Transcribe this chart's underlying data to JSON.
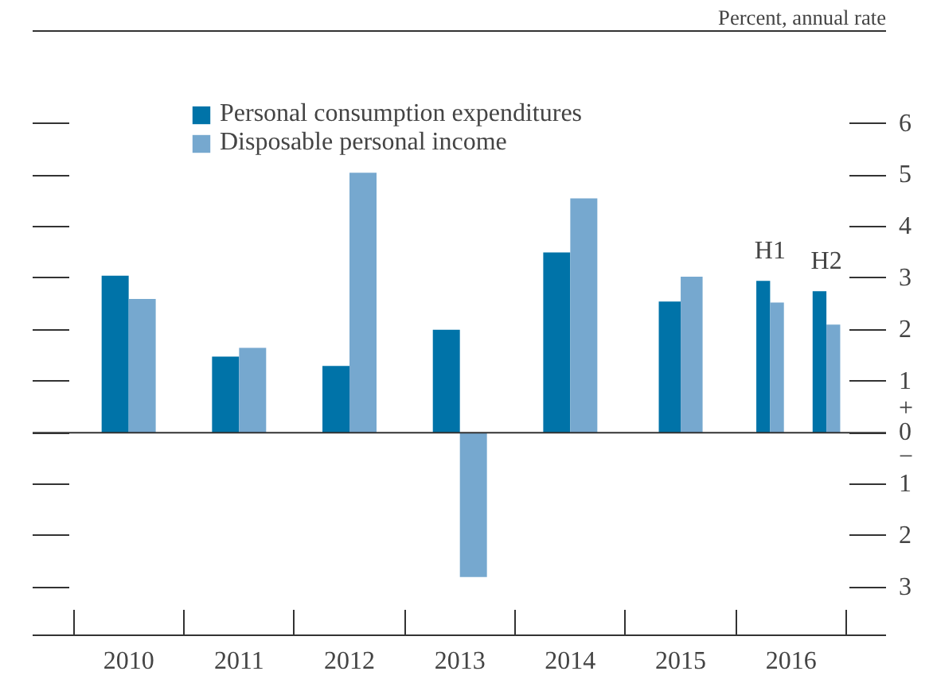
{
  "chart_data": {
    "type": "bar",
    "ylabel": "Percent, annual rate",
    "x": [
      2010,
      2011,
      2012,
      2013,
      2014,
      2015,
      2015.81,
      2016.32
    ],
    "series": [
      {
        "name": "Personal consumption expenditures",
        "color": "#0073a8",
        "values": [
          3.05,
          1.48,
          1.3,
          2.0,
          3.5,
          2.55,
          2.95,
          2.75
        ]
      },
      {
        "name": "Disposable personal income",
        "color": "#76a8cf",
        "values": [
          2.6,
          1.65,
          5.05,
          -2.8,
          4.55,
          3.03,
          2.53,
          2.1
        ]
      }
    ],
    "annotations": [
      "H1",
      "H2"
    ],
    "xlim": [
      2009.13,
      2016.86
    ],
    "xticks": [
      {
        "value": 2009.5,
        "label": null
      },
      {
        "value": 2010,
        "label": "2010"
      },
      {
        "value": 2010.5,
        "label": null
      },
      {
        "value": 2011,
        "label": "2011"
      },
      {
        "value": 2011.5,
        "label": null
      },
      {
        "value": 2012,
        "label": "2012"
      },
      {
        "value": 2012.5,
        "label": null
      },
      {
        "value": 2013,
        "label": "2013"
      },
      {
        "value": 2013.5,
        "label": null
      },
      {
        "value": 2014,
        "label": "2014"
      },
      {
        "value": 2014.5,
        "label": null
      },
      {
        "value": 2015,
        "label": "2015"
      },
      {
        "value": 2015.5,
        "label": null
      },
      {
        "value": 2016,
        "label": "2016"
      },
      {
        "value": 2016.5,
        "label": null
      }
    ],
    "ylim": [
      -3.93,
      7.8
    ],
    "yticks": [
      6,
      5,
      4,
      3,
      2,
      1,
      {
        "value": 0,
        "label": "+\n0\n−"
      },
      {
        "value": -1,
        "label": "1"
      },
      {
        "value": -2,
        "label": "2"
      },
      {
        "value": -3,
        "label": "3"
      }
    ],
    "legend": "top left",
    "grid": "y"
  }
}
